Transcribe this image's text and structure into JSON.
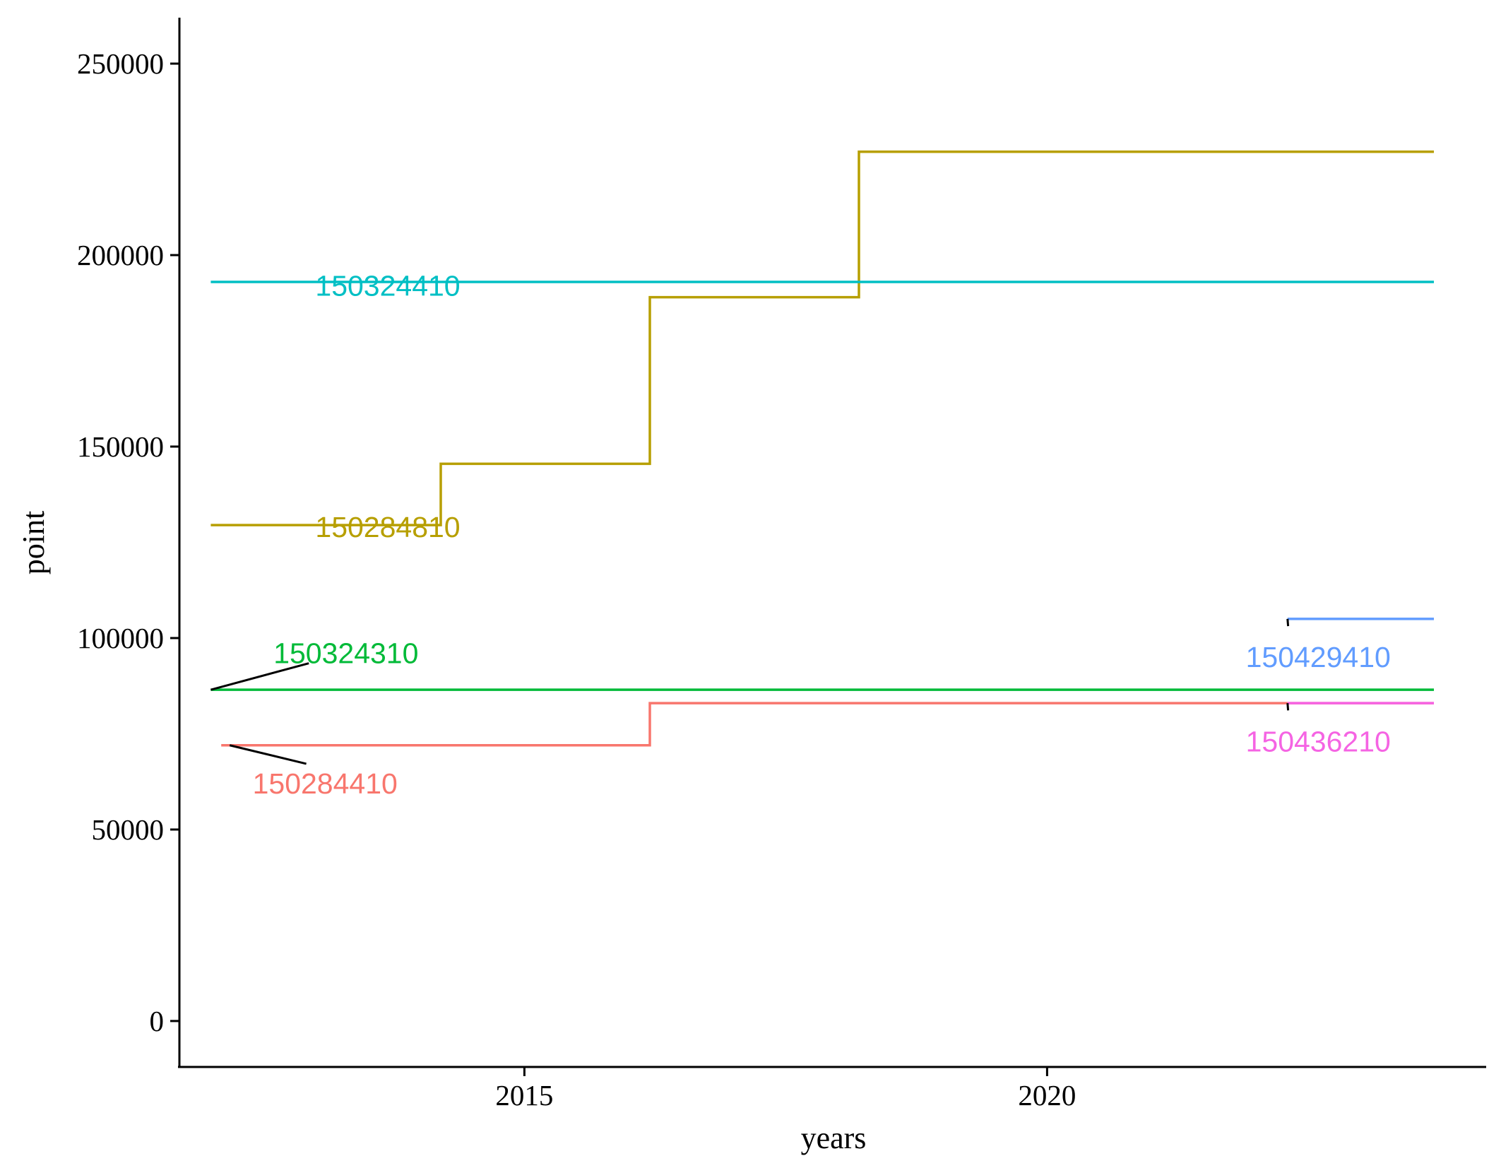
{
  "chart_data": {
    "type": "line",
    "subtype": "step",
    "xlabel": "years",
    "ylabel": "point",
    "xlim": [
      2011.7,
      2024.2
    ],
    "ylim": [
      -12000,
      262000
    ],
    "xticks": [
      2015,
      2020
    ],
    "yticks": [
      0,
      50000,
      100000,
      150000,
      200000,
      250000
    ],
    "grid": false,
    "legend": "none (direct labels)",
    "series": [
      {
        "name": "150284410",
        "color": "#F8766D",
        "x": [
          2012.1,
          2016.2,
          2023.7
        ],
        "y": [
          72000,
          83000,
          83000
        ]
      },
      {
        "name": "150284810",
        "color": "#B79F00",
        "x": [
          2012.0,
          2014.2,
          2016.2,
          2018.2,
          2023.7
        ],
        "y": [
          129500,
          145500,
          189000,
          227000,
          227000
        ]
      },
      {
        "name": "150324310",
        "color": "#00BA38",
        "x": [
          2012.0,
          2023.7
        ],
        "y": [
          86500,
          86500
        ]
      },
      {
        "name": "150324410",
        "color": "#00BFC4",
        "x": [
          2012.0,
          2023.7
        ],
        "y": [
          193000,
          193000
        ]
      },
      {
        "name": "150429410",
        "color": "#619CFF",
        "x": [
          2022.3,
          2023.7
        ],
        "y": [
          105000,
          105000
        ]
      },
      {
        "name": "150436210",
        "color": "#F564E3",
        "x": [
          2022.3,
          2023.7
        ],
        "y": [
          83000,
          83000
        ]
      }
    ],
    "annotations": [
      {
        "series": 0,
        "text": "150284410",
        "x": 2012.4,
        "y": 62000,
        "leader": true
      },
      {
        "series": 1,
        "text": "150284810",
        "x": 2013.0,
        "y": 129000,
        "leader": false
      },
      {
        "series": 2,
        "text": "150324310",
        "x": 2012.6,
        "y": 96000,
        "leader": true
      },
      {
        "series": 3,
        "text": "150324410",
        "x": 2013.0,
        "y": 192000,
        "leader": false
      },
      {
        "series": 4,
        "text": "150429410",
        "x": 2021.9,
        "y": 95000,
        "leader": true
      },
      {
        "series": 5,
        "text": "150436210",
        "x": 2021.9,
        "y": 73000,
        "leader": true
      }
    ]
  }
}
